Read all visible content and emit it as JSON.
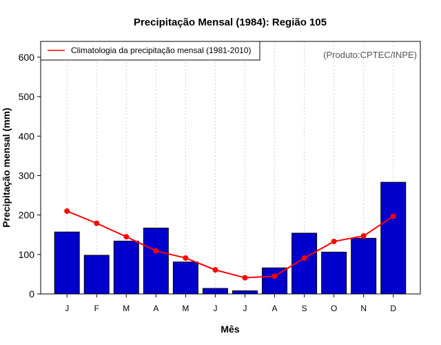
{
  "chart_data": {
    "type": "bar",
    "title": "Precipitação Mensal (1984): Região 105",
    "xlabel": "Mês",
    "ylabel": "Precipitação mensal (mm)",
    "ylim": [
      0,
      640
    ],
    "yticks": [
      0,
      100,
      200,
      300,
      400,
      500,
      600
    ],
    "grid": "vertical dotted",
    "categories": [
      "J",
      "F",
      "M",
      "A",
      "M",
      "J",
      "J",
      "A",
      "S",
      "O",
      "N",
      "D"
    ],
    "series": [
      {
        "name": "Precipitação mensal (1984)",
        "kind": "bar",
        "color": "#0000cc",
        "values": [
          157,
          98,
          134,
          167,
          81,
          14,
          8,
          66,
          154,
          106,
          141,
          283
        ]
      },
      {
        "name": "Climatologia da precipitação mensal (1981-2010)",
        "kind": "line",
        "color": "#ff0000",
        "values": [
          210,
          179,
          145,
          109,
          91,
          61,
          41,
          45,
          91,
          133,
          147,
          197
        ]
      }
    ],
    "legend": {
      "position": "top-left",
      "label": "Climatologia da precipitação mensal (1981-2010)"
    },
    "annotation": "(Produto:CPTEC/INPE)"
  }
}
